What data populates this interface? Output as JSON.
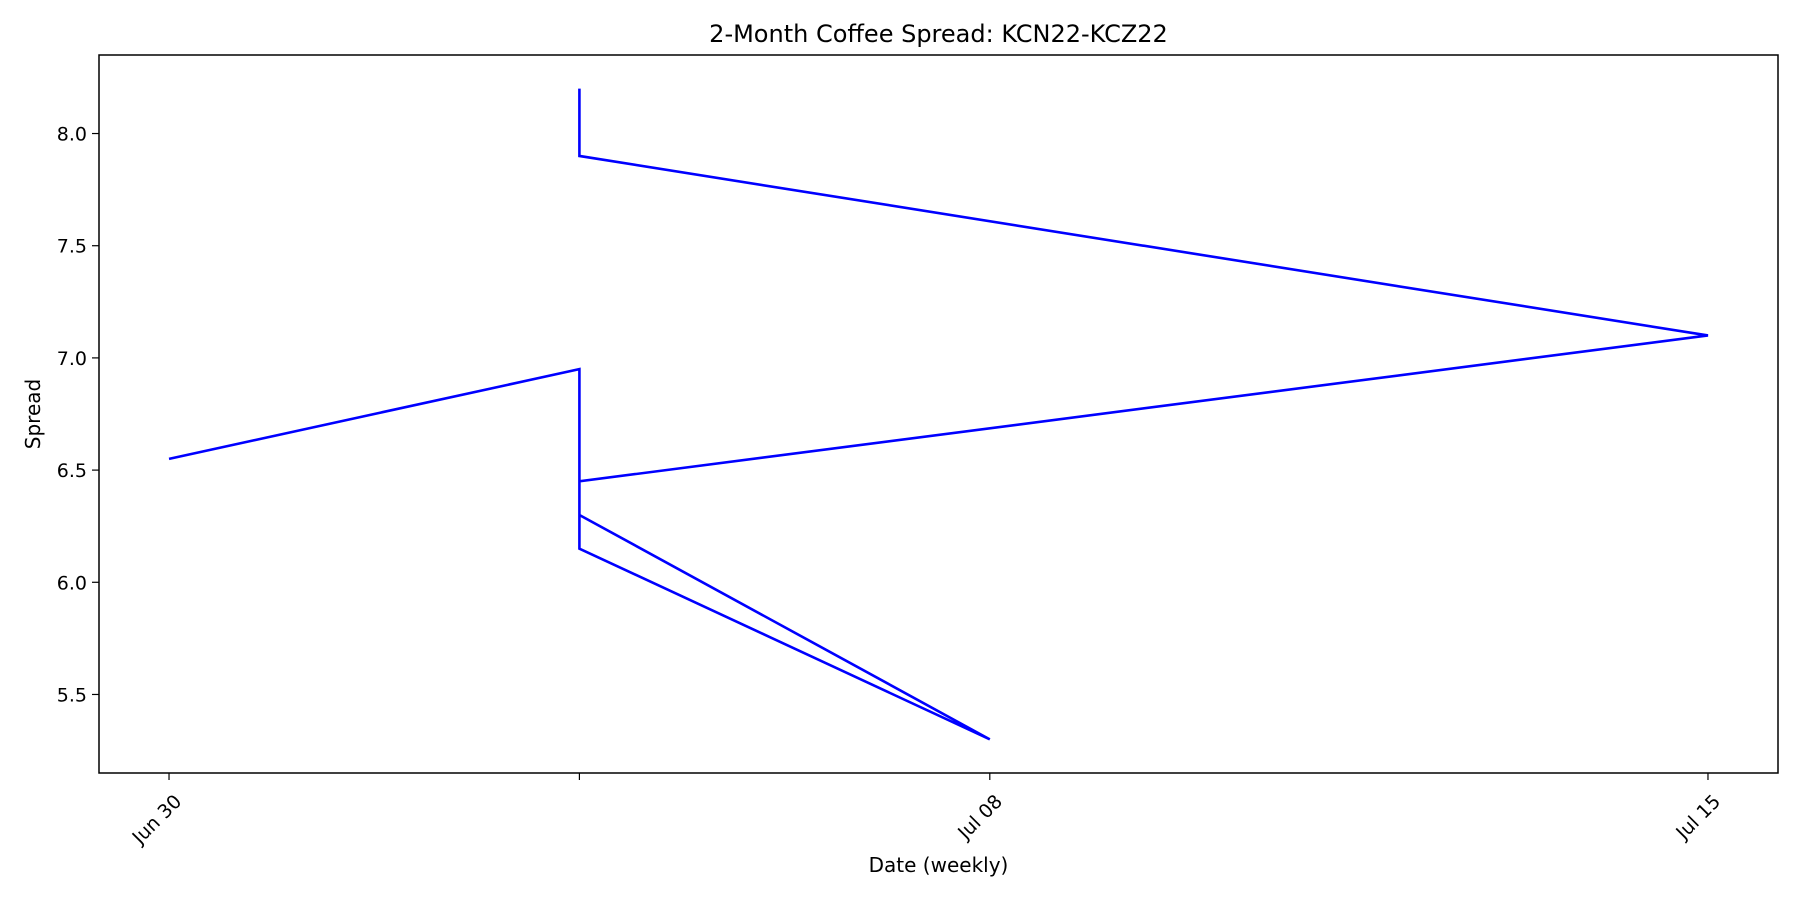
{
  "chart_data": {
    "type": "line",
    "title": "2-Month Coffee Spread: KCN22-KCZ22",
    "xlabel": "Date (weekly)",
    "ylabel": "Spread",
    "x_ticks": [
      "2022-06-30",
      "2022-07-04",
      "2022-07-08",
      "2022-07-15"
    ],
    "x_tick_labels": [
      "Jun 30",
      "",
      "Jul 08",
      "Jul 15"
    ],
    "y_ticks": [
      5.5,
      6.0,
      6.5,
      7.0,
      7.5,
      8.0
    ],
    "y_tick_labels": [
      "5.5",
      "6.0",
      "6.5",
      "7.0",
      "7.5",
      "8.0"
    ],
    "ylim": [
      5.15,
      8.35
    ],
    "grid": false,
    "series": [
      {
        "color": "#0000ff",
        "points": [
          {
            "x": "2022-06-30",
            "y": 6.55
          },
          {
            "x": "2022-07-04",
            "y": 6.95
          },
          {
            "x": "2022-07-04",
            "y": 6.15
          },
          {
            "x": "2022-07-08",
            "y": 5.3
          },
          {
            "x": "2022-07-04",
            "y": 6.3
          },
          {
            "x": "2022-07-04",
            "y": 6.55
          },
          {
            "x": "2022-07-04",
            "y": 6.45
          },
          {
            "x": "2022-07-15",
            "y": 7.1
          },
          {
            "x": "2022-07-04",
            "y": 7.9
          },
          {
            "x": "2022-07-04",
            "y": 8.2
          }
        ]
      }
    ]
  }
}
